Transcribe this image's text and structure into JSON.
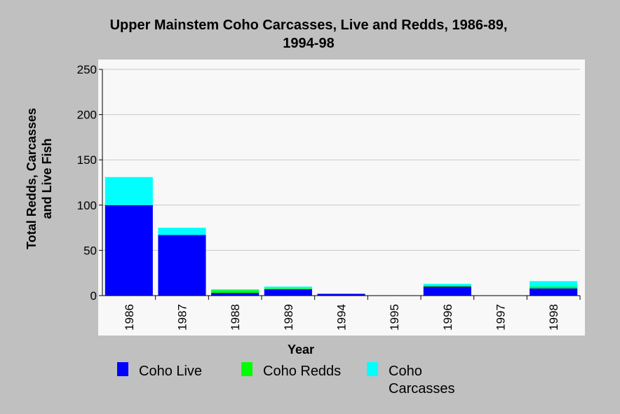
{
  "chart_data": {
    "type": "bar",
    "stacked": true,
    "title_lines": [
      "Upper Mainstem Coho Carcasses, Live and Redds, 1986-89,",
      "1994-98"
    ],
    "xlabel": "Year",
    "ylabel_lines": [
      "Total Redds, Carcasses",
      "and Live Fish"
    ],
    "categories": [
      "1986",
      "1987",
      "1988",
      "1989",
      "1994",
      "1995",
      "1996",
      "1997",
      "1998"
    ],
    "ylim": [
      0,
      250
    ],
    "yticks": [
      "0",
      "50",
      "100",
      "150",
      "200",
      "250"
    ],
    "grid": true,
    "legend_position": "bottom",
    "series": [
      {
        "name": "Coho Live",
        "color": "#0000ff",
        "values": [
          100,
          67,
          3,
          7,
          2,
          0,
          10,
          0,
          8
        ]
      },
      {
        "name": "Coho Redds",
        "color": "#00ff00",
        "values": [
          0,
          0,
          3,
          1,
          0,
          0,
          1,
          0,
          2
        ]
      },
      {
        "name": "Coho Carcasses",
        "color": "#00ffff",
        "values": [
          31,
          8,
          1,
          2,
          0,
          0,
          2,
          0,
          6
        ]
      }
    ],
    "legend": [
      {
        "lines": [
          "Coho Live"
        ],
        "color": "#0000ff"
      },
      {
        "lines": [
          "Coho Redds"
        ],
        "color": "#00ff00"
      },
      {
        "lines": [
          "Coho",
          "Carcasses"
        ],
        "color": "#00ffff"
      }
    ],
    "colors": {
      "page_background": "#c0c0c0",
      "plot_background": "#f8f8f8",
      "gridline": "#c8c8c8"
    }
  }
}
